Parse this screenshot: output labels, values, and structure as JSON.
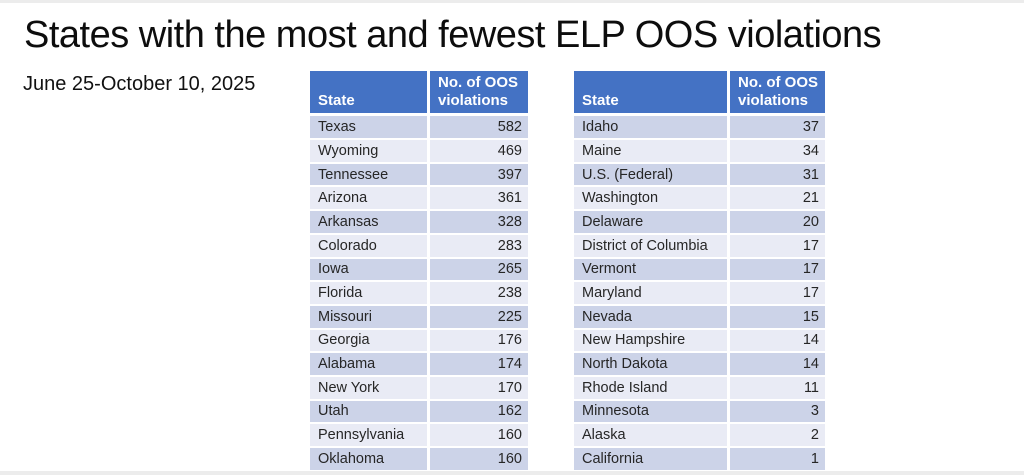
{
  "title": "States with the most and fewest ELP OOS violations",
  "subtitle": "June 25-October 10, 2025",
  "colors": {
    "header_bg": "#4472C4",
    "header_text": "#FFFFFF",
    "band_dark": "#CCD3E8",
    "band_light": "#E9EBF5",
    "body_text": "#262626",
    "title_text": "#0D0D0D"
  },
  "chart_data": [
    {
      "type": "table",
      "name": "most-violations",
      "columns": [
        "State",
        "No. of OOS violations"
      ],
      "rows": [
        [
          "Texas",
          582
        ],
        [
          "Wyoming",
          469
        ],
        [
          "Tennessee",
          397
        ],
        [
          "Arizona",
          361
        ],
        [
          "Arkansas",
          328
        ],
        [
          "Colorado",
          283
        ],
        [
          "Iowa",
          265
        ],
        [
          "Florida",
          238
        ],
        [
          "Missouri",
          225
        ],
        [
          "Georgia",
          176
        ],
        [
          "Alabama",
          174
        ],
        [
          "New York",
          170
        ],
        [
          "Utah",
          162
        ],
        [
          "Pennsylvania",
          160
        ],
        [
          "Oklahoma",
          160
        ]
      ]
    },
    {
      "type": "table",
      "name": "fewest-violations",
      "columns": [
        "State",
        "No. of OOS violations"
      ],
      "rows": [
        [
          "Idaho",
          37
        ],
        [
          "Maine",
          34
        ],
        [
          "U.S. (Federal)",
          31
        ],
        [
          "Washington",
          21
        ],
        [
          "Delaware",
          20
        ],
        [
          "District of Columbia",
          17
        ],
        [
          "Vermont",
          17
        ],
        [
          "Maryland",
          17
        ],
        [
          "Nevada",
          15
        ],
        [
          "New Hampshire",
          14
        ],
        [
          "North Dakota",
          14
        ],
        [
          "Rhode Island",
          11
        ],
        [
          "Minnesota",
          3
        ],
        [
          "Alaska",
          2
        ],
        [
          "California",
          1
        ]
      ]
    }
  ]
}
